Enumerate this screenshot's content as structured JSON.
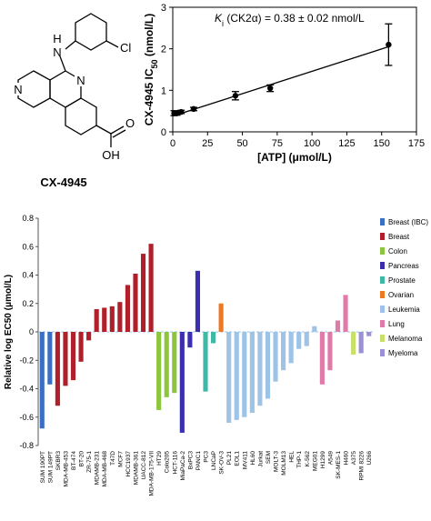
{
  "structure": {
    "label": "CX-4945",
    "atoms": [
      "N",
      "H",
      "Cl",
      "N",
      "N",
      "O",
      "OH"
    ]
  },
  "chart_data": [
    {
      "type": "scatter",
      "annotation": [
        "K",
        "i",
        " (CK2α) = 0.38 ± 0.02 nmol/L"
      ],
      "x_label": "[ATP] (μmol/L)",
      "y_label": [
        "CX-4945 IC",
        "50",
        " (nmol/L)"
      ],
      "xlim": [
        0,
        175
      ],
      "xticks": [
        0,
        25,
        50,
        75,
        100,
        125,
        150,
        175
      ],
      "ylim": [
        0,
        3
      ],
      "yticks": [
        0,
        1,
        2,
        3
      ],
      "color": "#000000",
      "x": [
        1,
        3,
        6,
        15,
        45,
        70,
        155
      ],
      "values": [
        0.45,
        0.45,
        0.48,
        0.55,
        0.87,
        1.05,
        2.1
      ],
      "errors": [
        0.06,
        0.05,
        0.04,
        0.04,
        0.1,
        0.08,
        0.5
      ],
      "fit": {
        "x": [
          0,
          155
        ],
        "values": [
          0.38,
          2.05
        ]
      }
    },
    {
      "type": "bar",
      "y_label": "Relative log EC50 (μmol/L)",
      "ylim": [
        -0.8,
        0.8
      ],
      "yticks": [
        -0.8,
        -0.6,
        -0.4,
        -0.2,
        0,
        0.2,
        0.4,
        0.6,
        0.8
      ],
      "grid": false,
      "legend": "right",
      "series": [
        {
          "name": "Breast (IBC)",
          "color": "#3a6fc4",
          "categories": [
            "SUM 190PT",
            "SUM 149PT"
          ],
          "values": [
            -0.68,
            -0.37
          ]
        },
        {
          "name": "Breast",
          "color": "#b0202a",
          "categories": [
            "SKBR3",
            "MDA-MB-453",
            "BT-474",
            "BT-20",
            "ZR-75-1",
            "MDAMB-231",
            "MDA-MB-468",
            "T47D",
            "MCF7",
            "HCC1937",
            "MDAMB-361",
            "UACC-812",
            "MDA-MB-175-VII"
          ],
          "values": [
            -0.52,
            -0.38,
            -0.34,
            -0.21,
            -0.06,
            0.16,
            0.17,
            0.18,
            0.21,
            0.33,
            0.41,
            0.55,
            0.62
          ]
        },
        {
          "name": "Colon",
          "color": "#8cc63f",
          "categories": [
            "HT29",
            "Colo205",
            "HCT-116"
          ],
          "values": [
            -0.55,
            -0.46,
            -0.43
          ]
        },
        {
          "name": "Pancreas",
          "color": "#3b2fb0",
          "categories": [
            "MiaPaCa-2",
            "BxPC3",
            "PANC1"
          ],
          "values": [
            -0.71,
            -0.11,
            0.43
          ]
        },
        {
          "name": "Prostate",
          "color": "#3fb8a8",
          "categories": [
            "PC3",
            "LNCaP"
          ],
          "values": [
            -0.42,
            -0.08
          ]
        },
        {
          "name": "Ovarian",
          "color": "#f07820",
          "categories": [
            "SK-OV-3"
          ],
          "values": [
            0.2
          ]
        },
        {
          "name": "Leukemia",
          "color": "#9dc3e6",
          "categories": [
            "PL21",
            "EOL1",
            "MV411",
            "HL60",
            "Jurkat",
            "SEM",
            "MOLT-3",
            "MOLM13",
            "HEL",
            "THP-1",
            "K-562",
            "MEG01"
          ],
          "values": [
            -0.64,
            -0.62,
            -0.6,
            -0.57,
            -0.52,
            -0.47,
            -0.35,
            -0.27,
            -0.22,
            -0.12,
            -0.1,
            0.04
          ]
        },
        {
          "name": "Lung",
          "color": "#e07aa8",
          "categories": [
            "H1299",
            "A549",
            "SK-MES-1",
            "H460"
          ],
          "values": [
            -0.37,
            -0.27,
            0.08,
            0.26
          ]
        },
        {
          "name": "Melanoma",
          "color": "#c8e06a",
          "categories": [
            "A375"
          ],
          "values": [
            -0.16
          ]
        },
        {
          "name": "Myeloma",
          "color": "#9b8fd6",
          "categories": [
            "RPMI 8226",
            "U266"
          ],
          "values": [
            -0.15,
            -0.03
          ]
        }
      ]
    }
  ]
}
